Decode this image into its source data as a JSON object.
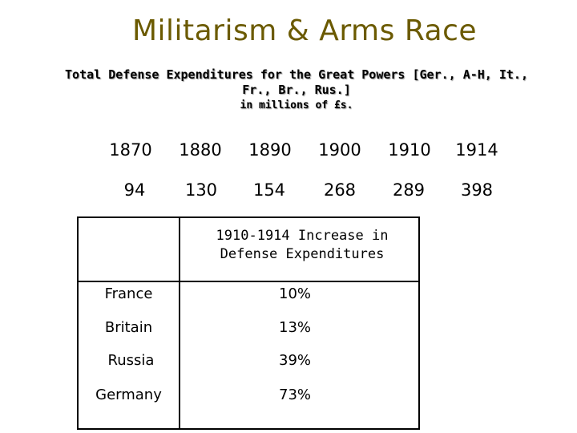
{
  "title": "Militarism & Arms Race",
  "subtitle": {
    "line1": "Total Defense Expenditures for the Great Powers [Ger., A-H, It.,",
    "line2": "Fr., Br., Rus.]",
    "line3": "in millions of £s."
  },
  "expenditures": {
    "years": [
      "1870",
      "1880",
      "1890",
      "1900",
      "1910",
      "1914"
    ],
    "amounts": [
      "94",
      "130",
      "154",
      "268",
      "289",
      "398"
    ]
  },
  "increase_table": {
    "header_line1": "1910-1914 Increase in",
    "header_line2": "Defense Expenditures",
    "rows": [
      {
        "country": "France",
        "increase": "10%"
      },
      {
        "country": "Britain",
        "increase": "13%"
      },
      {
        "country": "Russia",
        "increase": "39%"
      },
      {
        "country": "Germany",
        "increase": "73%"
      }
    ]
  },
  "colors": {
    "title": "#6b5a00",
    "text": "#000000",
    "background": "#ffffff"
  }
}
